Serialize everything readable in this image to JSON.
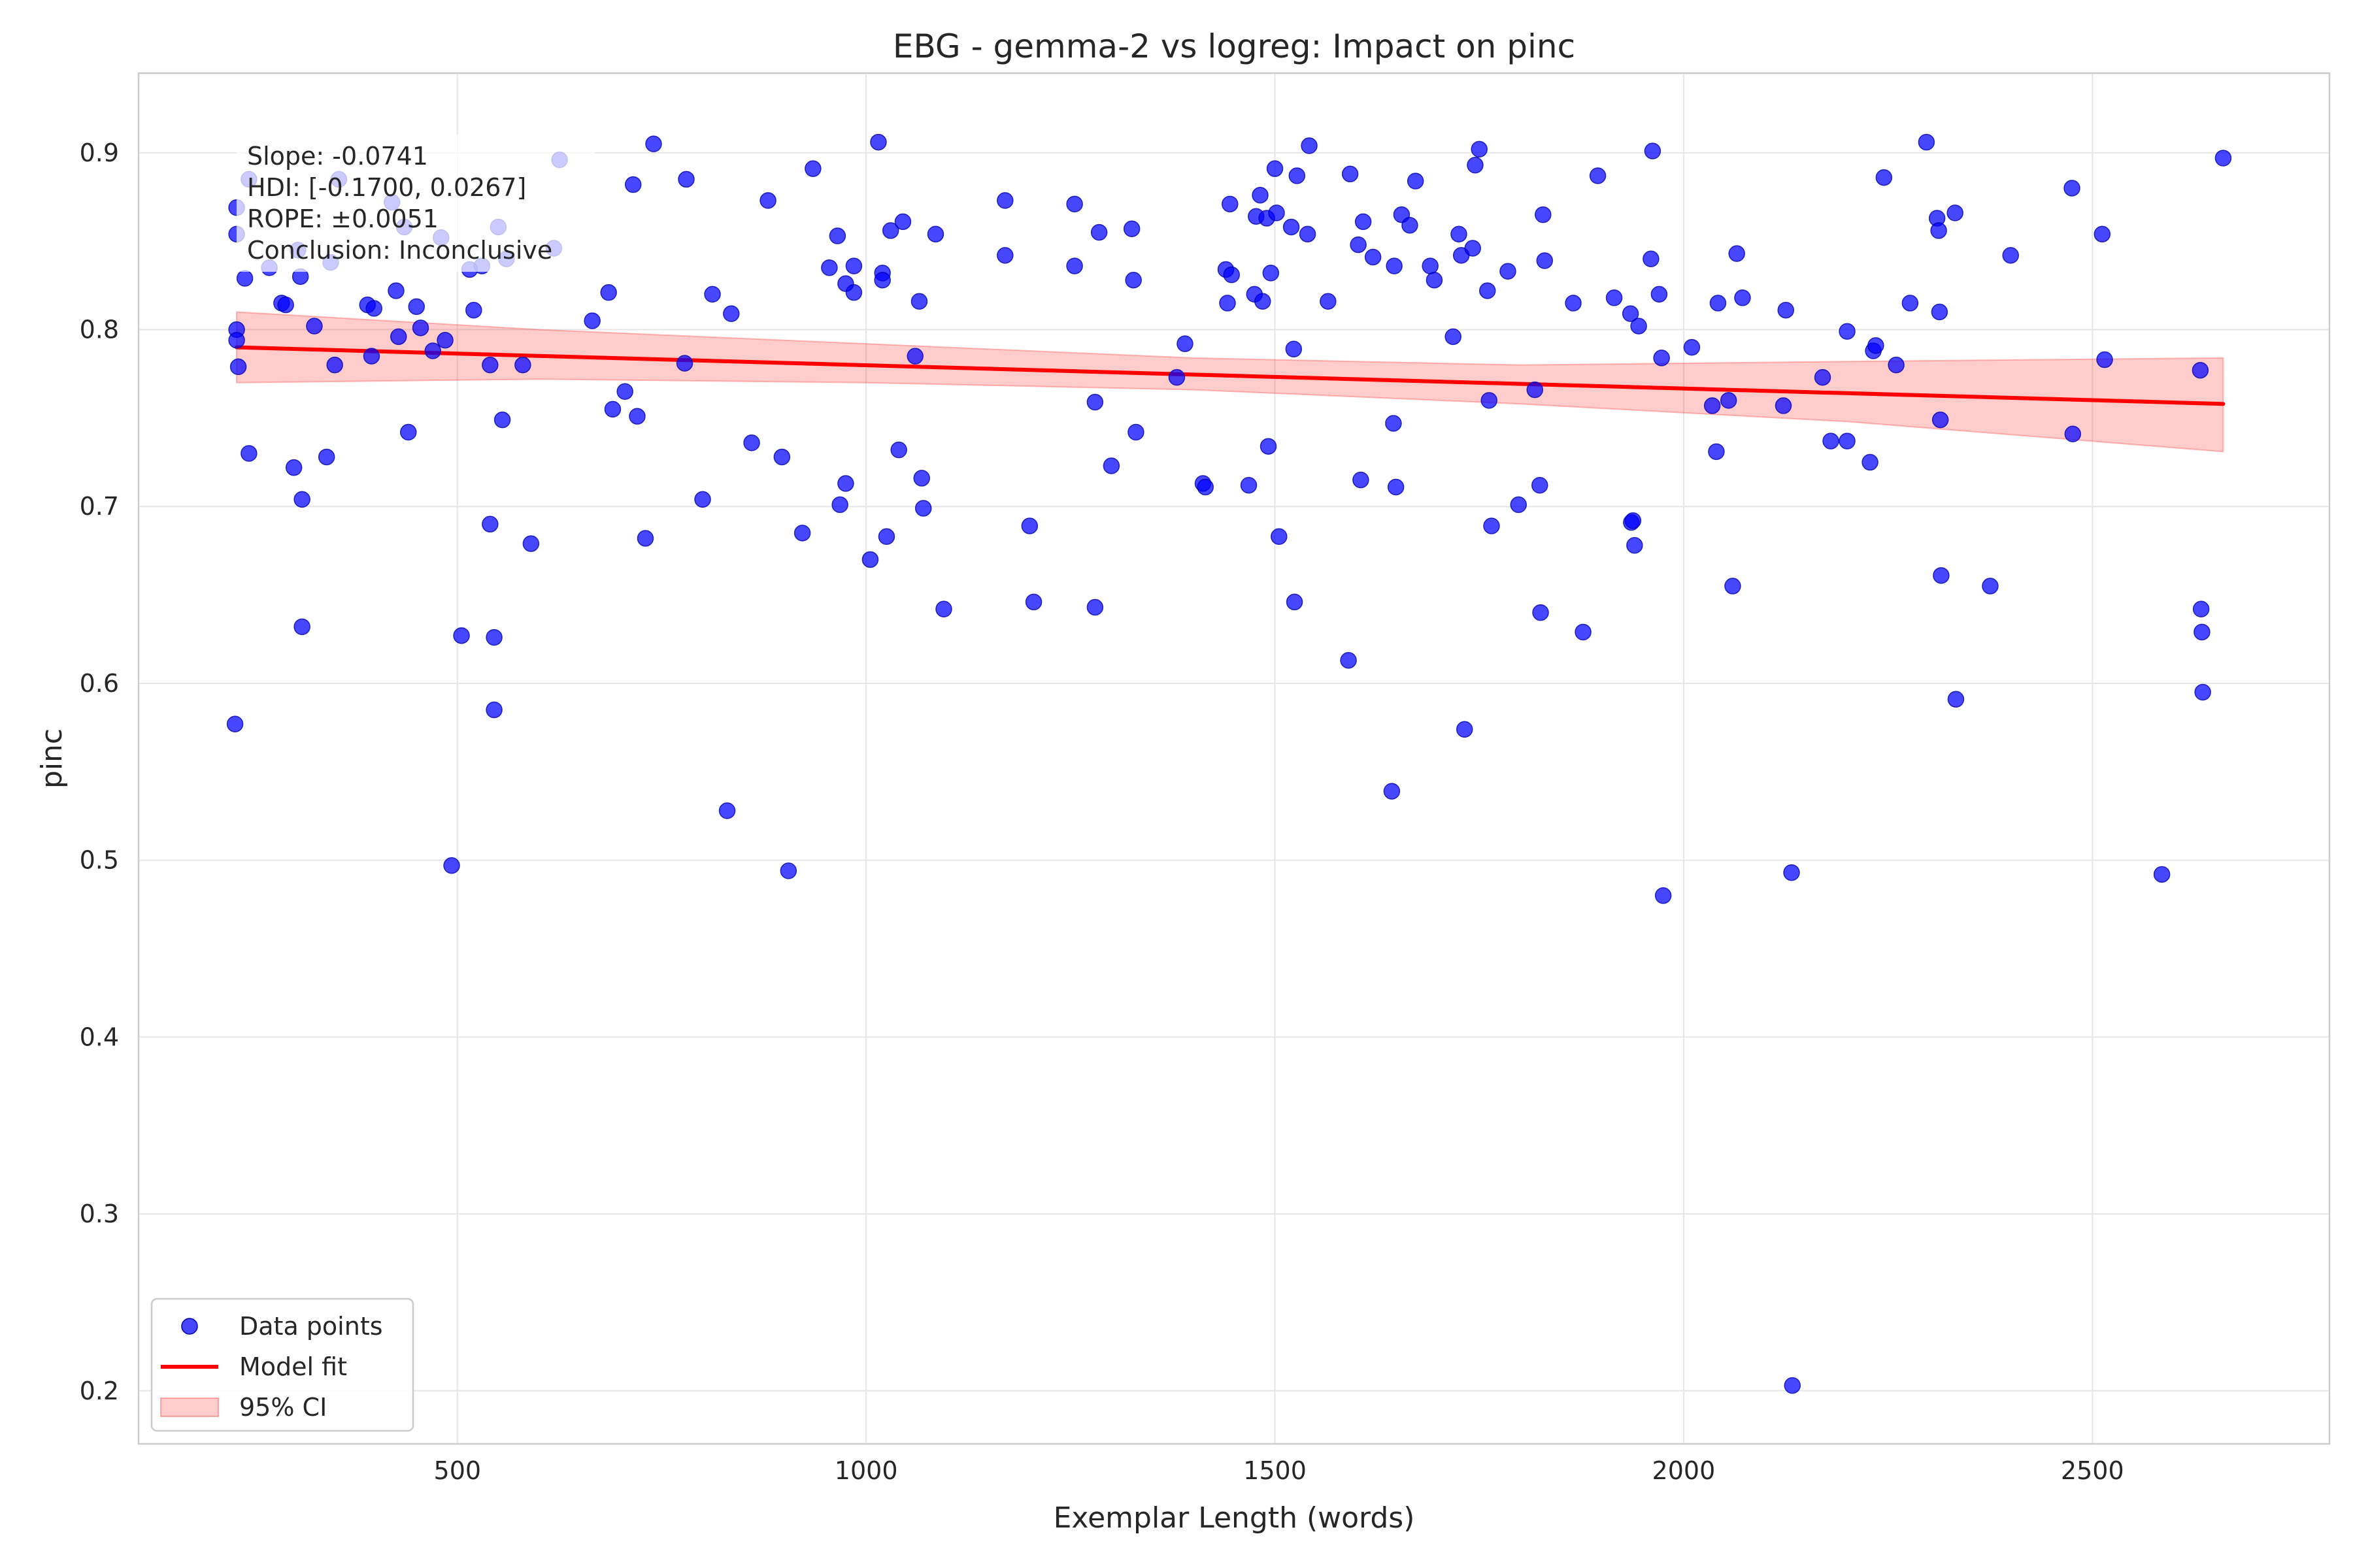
{
  "chart_data": {
    "type": "scatter",
    "title": "EBG - gemma-2 vs logreg: Impact on pinc",
    "xlabel": "Exemplar Length (words)",
    "ylabel": "pinc",
    "xlim": [
      110,
      2790
    ],
    "ylim": [
      0.17,
      0.945
    ],
    "x_ticks": [
      500,
      1000,
      1500,
      2000,
      2500
    ],
    "x_tick_labels": [
      "500",
      "1000",
      "1500",
      "2000",
      "2500"
    ],
    "y_ticks": [
      0.2,
      0.3,
      0.4,
      0.5,
      0.6,
      0.7,
      0.8,
      0.9
    ],
    "y_tick_labels": [
      "0.2",
      "0.3",
      "0.4",
      "0.5",
      "0.6",
      "0.7",
      "0.8",
      "0.9"
    ],
    "grid": true,
    "legend_position": "bottom-left",
    "colors": {
      "points": "#0000ff",
      "fit": "#ff0000",
      "ci": "#ff9999"
    },
    "annotation": [
      "Slope: -0.0741",
      "HDI: [-0.1700, 0.0267]",
      "ROPE: ±0.0051",
      "Conclusion: Inconclusive"
    ],
    "legend": [
      {
        "label": "Data points",
        "kind": "point"
      },
      {
        "label": "Model fit",
        "kind": "line"
      },
      {
        "label": "95% CI",
        "kind": "band"
      }
    ],
    "fit_line": {
      "x": [
        230,
        2660
      ],
      "y": [
        0.79,
        0.758
      ]
    },
    "ci_band": {
      "x": [
        230,
        600,
        1000,
        1400,
        1800,
        2200,
        2660
      ],
      "lower": [
        0.77,
        0.772,
        0.77,
        0.766,
        0.758,
        0.748,
        0.731
      ],
      "upper": [
        0.81,
        0.8,
        0.792,
        0.784,
        0.78,
        0.782,
        0.784
      ]
    },
    "series": [
      {
        "name": "Data points",
        "points": [
          [
            230,
            0.869
          ],
          [
            230,
            0.854
          ],
          [
            230,
            0.8
          ],
          [
            230,
            0.794
          ],
          [
            232,
            0.779
          ],
          [
            228,
            0.577
          ],
          [
            240,
            0.829
          ],
          [
            245,
            0.885
          ],
          [
            245,
            0.73
          ],
          [
            270,
            0.835
          ],
          [
            285,
            0.815
          ],
          [
            290,
            0.814
          ],
          [
            300,
            0.722
          ],
          [
            305,
            0.845
          ],
          [
            308,
            0.83
          ],
          [
            310,
            0.704
          ],
          [
            310,
            0.632
          ],
          [
            325,
            0.802
          ],
          [
            340,
            0.728
          ],
          [
            345,
            0.838
          ],
          [
            350,
            0.78
          ],
          [
            355,
            0.885
          ],
          [
            390,
            0.814
          ],
          [
            395,
            0.785
          ],
          [
            398,
            0.812
          ],
          [
            420,
            0.872
          ],
          [
            425,
            0.822
          ],
          [
            428,
            0.796
          ],
          [
            435,
            0.858
          ],
          [
            440,
            0.742
          ],
          [
            450,
            0.813
          ],
          [
            455,
            0.801
          ],
          [
            470,
            0.788
          ],
          [
            480,
            0.852
          ],
          [
            485,
            0.794
          ],
          [
            493,
            0.497
          ],
          [
            505,
            0.627
          ],
          [
            515,
            0.834
          ],
          [
            520,
            0.811
          ],
          [
            530,
            0.836
          ],
          [
            540,
            0.78
          ],
          [
            540,
            0.69
          ],
          [
            545,
            0.626
          ],
          [
            545,
            0.585
          ],
          [
            550,
            0.858
          ],
          [
            555,
            0.749
          ],
          [
            560,
            0.84
          ],
          [
            580,
            0.78
          ],
          [
            590,
            0.679
          ],
          [
            618,
            0.846
          ],
          [
            625,
            0.896
          ],
          [
            665,
            0.805
          ],
          [
            685,
            0.821
          ],
          [
            690,
            0.755
          ],
          [
            705,
            0.765
          ],
          [
            715,
            0.882
          ],
          [
            720,
            0.751
          ],
          [
            730,
            0.682
          ],
          [
            740,
            0.905
          ],
          [
            778,
            0.781
          ],
          [
            780,
            0.885
          ],
          [
            800,
            0.704
          ],
          [
            812,
            0.82
          ],
          [
            830,
            0.528
          ],
          [
            835,
            0.809
          ],
          [
            860,
            0.736
          ],
          [
            880,
            0.873
          ],
          [
            897,
            0.728
          ],
          [
            905,
            0.494
          ],
          [
            922,
            0.685
          ],
          [
            935,
            0.891
          ],
          [
            955,
            0.835
          ],
          [
            965,
            0.853
          ],
          [
            968,
            0.701
          ],
          [
            975,
            0.713
          ],
          [
            975,
            0.826
          ],
          [
            985,
            0.836
          ],
          [
            985,
            0.821
          ],
          [
            1005,
            0.67
          ],
          [
            1015,
            0.906
          ],
          [
            1020,
            0.832
          ],
          [
            1020,
            0.828
          ],
          [
            1025,
            0.683
          ],
          [
            1030,
            0.856
          ],
          [
            1040,
            0.732
          ],
          [
            1045,
            0.861
          ],
          [
            1060,
            0.785
          ],
          [
            1065,
            0.816
          ],
          [
            1068,
            0.716
          ],
          [
            1070,
            0.699
          ],
          [
            1085,
            0.854
          ],
          [
            1095,
            0.642
          ],
          [
            1170,
            0.873
          ],
          [
            1170,
            0.842
          ],
          [
            1200,
            0.689
          ],
          [
            1205,
            0.646
          ],
          [
            1255,
            0.871
          ],
          [
            1255,
            0.836
          ],
          [
            1280,
            0.759
          ],
          [
            1280,
            0.643
          ],
          [
            1285,
            0.855
          ],
          [
            1300,
            0.723
          ],
          [
            1325,
            0.857
          ],
          [
            1327,
            0.828
          ],
          [
            1330,
            0.742
          ],
          [
            1380,
            0.773
          ],
          [
            1390,
            0.792
          ],
          [
            1412,
            0.713
          ],
          [
            1415,
            0.711
          ],
          [
            1440,
            0.834
          ],
          [
            1442,
            0.815
          ],
          [
            1445,
            0.871
          ],
          [
            1447,
            0.831
          ],
          [
            1468,
            0.712
          ],
          [
            1475,
            0.82
          ],
          [
            1477,
            0.864
          ],
          [
            1482,
            0.876
          ],
          [
            1485,
            0.816
          ],
          [
            1490,
            0.863
          ],
          [
            1492,
            0.734
          ],
          [
            1495,
            0.832
          ],
          [
            1500,
            0.891
          ],
          [
            1502,
            0.866
          ],
          [
            1505,
            0.683
          ],
          [
            1520,
            0.858
          ],
          [
            1523,
            0.789
          ],
          [
            1524,
            0.646
          ],
          [
            1527,
            0.887
          ],
          [
            1540,
            0.854
          ],
          [
            1542,
            0.904
          ],
          [
            1565,
            0.816
          ],
          [
            1590,
            0.613
          ],
          [
            1592,
            0.888
          ],
          [
            1602,
            0.848
          ],
          [
            1605,
            0.715
          ],
          [
            1608,
            0.861
          ],
          [
            1620,
            0.841
          ],
          [
            1643,
            0.539
          ],
          [
            1645,
            0.747
          ],
          [
            1646,
            0.836
          ],
          [
            1648,
            0.711
          ],
          [
            1655,
            0.865
          ],
          [
            1665,
            0.859
          ],
          [
            1672,
            0.884
          ],
          [
            1690,
            0.836
          ],
          [
            1695,
            0.828
          ],
          [
            1718,
            0.796
          ],
          [
            1725,
            0.854
          ],
          [
            1728,
            0.842
          ],
          [
            1732,
            0.574
          ],
          [
            1742,
            0.846
          ],
          [
            1745,
            0.893
          ],
          [
            1750,
            0.902
          ],
          [
            1760,
            0.822
          ],
          [
            1762,
            0.76
          ],
          [
            1765,
            0.689
          ],
          [
            1785,
            0.833
          ],
          [
            1798,
            0.701
          ],
          [
            1818,
            0.766
          ],
          [
            1824,
            0.712
          ],
          [
            1825,
            0.64
          ],
          [
            1828,
            0.865
          ],
          [
            1830,
            0.839
          ],
          [
            1865,
            0.815
          ],
          [
            1877,
            0.629
          ],
          [
            1895,
            0.887
          ],
          [
            1915,
            0.818
          ],
          [
            1935,
            0.809
          ],
          [
            1936,
            0.691
          ],
          [
            1938,
            0.692
          ],
          [
            1940,
            0.678
          ],
          [
            1945,
            0.802
          ],
          [
            1960,
            0.84
          ],
          [
            1962,
            0.901
          ],
          [
            1970,
            0.82
          ],
          [
            1973,
            0.784
          ],
          [
            1975,
            0.48
          ],
          [
            2010,
            0.79
          ],
          [
            2035,
            0.757
          ],
          [
            2040,
            0.731
          ],
          [
            2042,
            0.815
          ],
          [
            2055,
            0.76
          ],
          [
            2060,
            0.655
          ],
          [
            2065,
            0.843
          ],
          [
            2072,
            0.818
          ],
          [
            2122,
            0.757
          ],
          [
            2125,
            0.811
          ],
          [
            2132,
            0.493
          ],
          [
            2133,
            0.203
          ],
          [
            2170,
            0.773
          ],
          [
            2180,
            0.737
          ],
          [
            2200,
            0.737
          ],
          [
            2200,
            0.799
          ],
          [
            2228,
            0.725
          ],
          [
            2232,
            0.788
          ],
          [
            2235,
            0.791
          ],
          [
            2245,
            0.886
          ],
          [
            2260,
            0.78
          ],
          [
            2277,
            0.815
          ],
          [
            2297,
            0.906
          ],
          [
            2310,
            0.863
          ],
          [
            2312,
            0.856
          ],
          [
            2313,
            0.81
          ],
          [
            2314,
            0.749
          ],
          [
            2315,
            0.661
          ],
          [
            2332,
            0.866
          ],
          [
            2333,
            0.591
          ],
          [
            2375,
            0.655
          ],
          [
            2400,
            0.842
          ],
          [
            2475,
            0.88
          ],
          [
            2476,
            0.741
          ],
          [
            2512,
            0.854
          ],
          [
            2515,
            0.783
          ],
          [
            2585,
            0.492
          ],
          [
            2632,
            0.777
          ],
          [
            2633,
            0.642
          ],
          [
            2634,
            0.629
          ],
          [
            2635,
            0.595
          ],
          [
            2660,
            0.897
          ]
        ]
      }
    ]
  }
}
